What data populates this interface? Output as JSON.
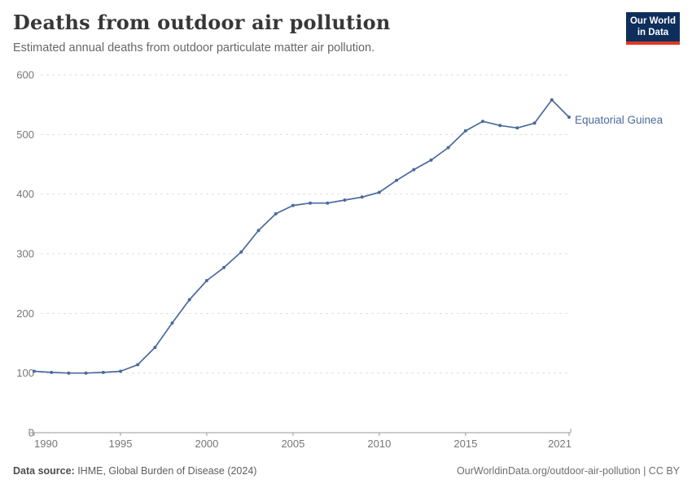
{
  "header": {
    "title": "Deaths from outdoor air pollution",
    "subtitle": "Estimated annual deaths from outdoor particulate matter air pollution."
  },
  "logo": {
    "line1": "Our World",
    "line2": "in Data",
    "bg_color": "#0e2e5b",
    "accent_color": "#dc3927"
  },
  "chart_data": {
    "type": "line",
    "title": "Deaths from outdoor air pollution",
    "xlabel": "",
    "ylabel": "",
    "x": [
      1990,
      1991,
      1992,
      1993,
      1994,
      1995,
      1996,
      1997,
      1998,
      1999,
      2000,
      2001,
      2002,
      2003,
      2004,
      2005,
      2006,
      2007,
      2008,
      2009,
      2010,
      2011,
      2012,
      2013,
      2014,
      2015,
      2016,
      2017,
      2018,
      2019,
      2020,
      2021
    ],
    "series": [
      {
        "name": "Equatorial Guinea",
        "color": "#4c6a9c",
        "values": [
          103,
          101,
          100,
          100,
          101,
          103,
          114,
          143,
          184,
          223,
          255,
          277,
          303,
          339,
          367,
          381,
          385,
          385,
          390,
          395,
          403,
          423,
          441,
          457,
          478,
          506,
          522,
          515,
          511,
          519,
          558,
          529
        ]
      }
    ],
    "ylim": [
      0,
      600
    ],
    "yticks": [
      0,
      100,
      200,
      300,
      400,
      500,
      600
    ],
    "xticks": [
      1990,
      1995,
      2000,
      2005,
      2010,
      2015,
      2021
    ],
    "grid": "horizontal-dashed",
    "legend": "end-of-line-label",
    "tick_color": "#767676",
    "grid_color": "#dedede",
    "axis_color": "#9a9a9a"
  },
  "footer": {
    "source_label": "Data source:",
    "source_text": " IHME, Global Burden of Disease (2024)",
    "credit": "OurWorldinData.org/outdoor-air-pollution | CC BY"
  }
}
